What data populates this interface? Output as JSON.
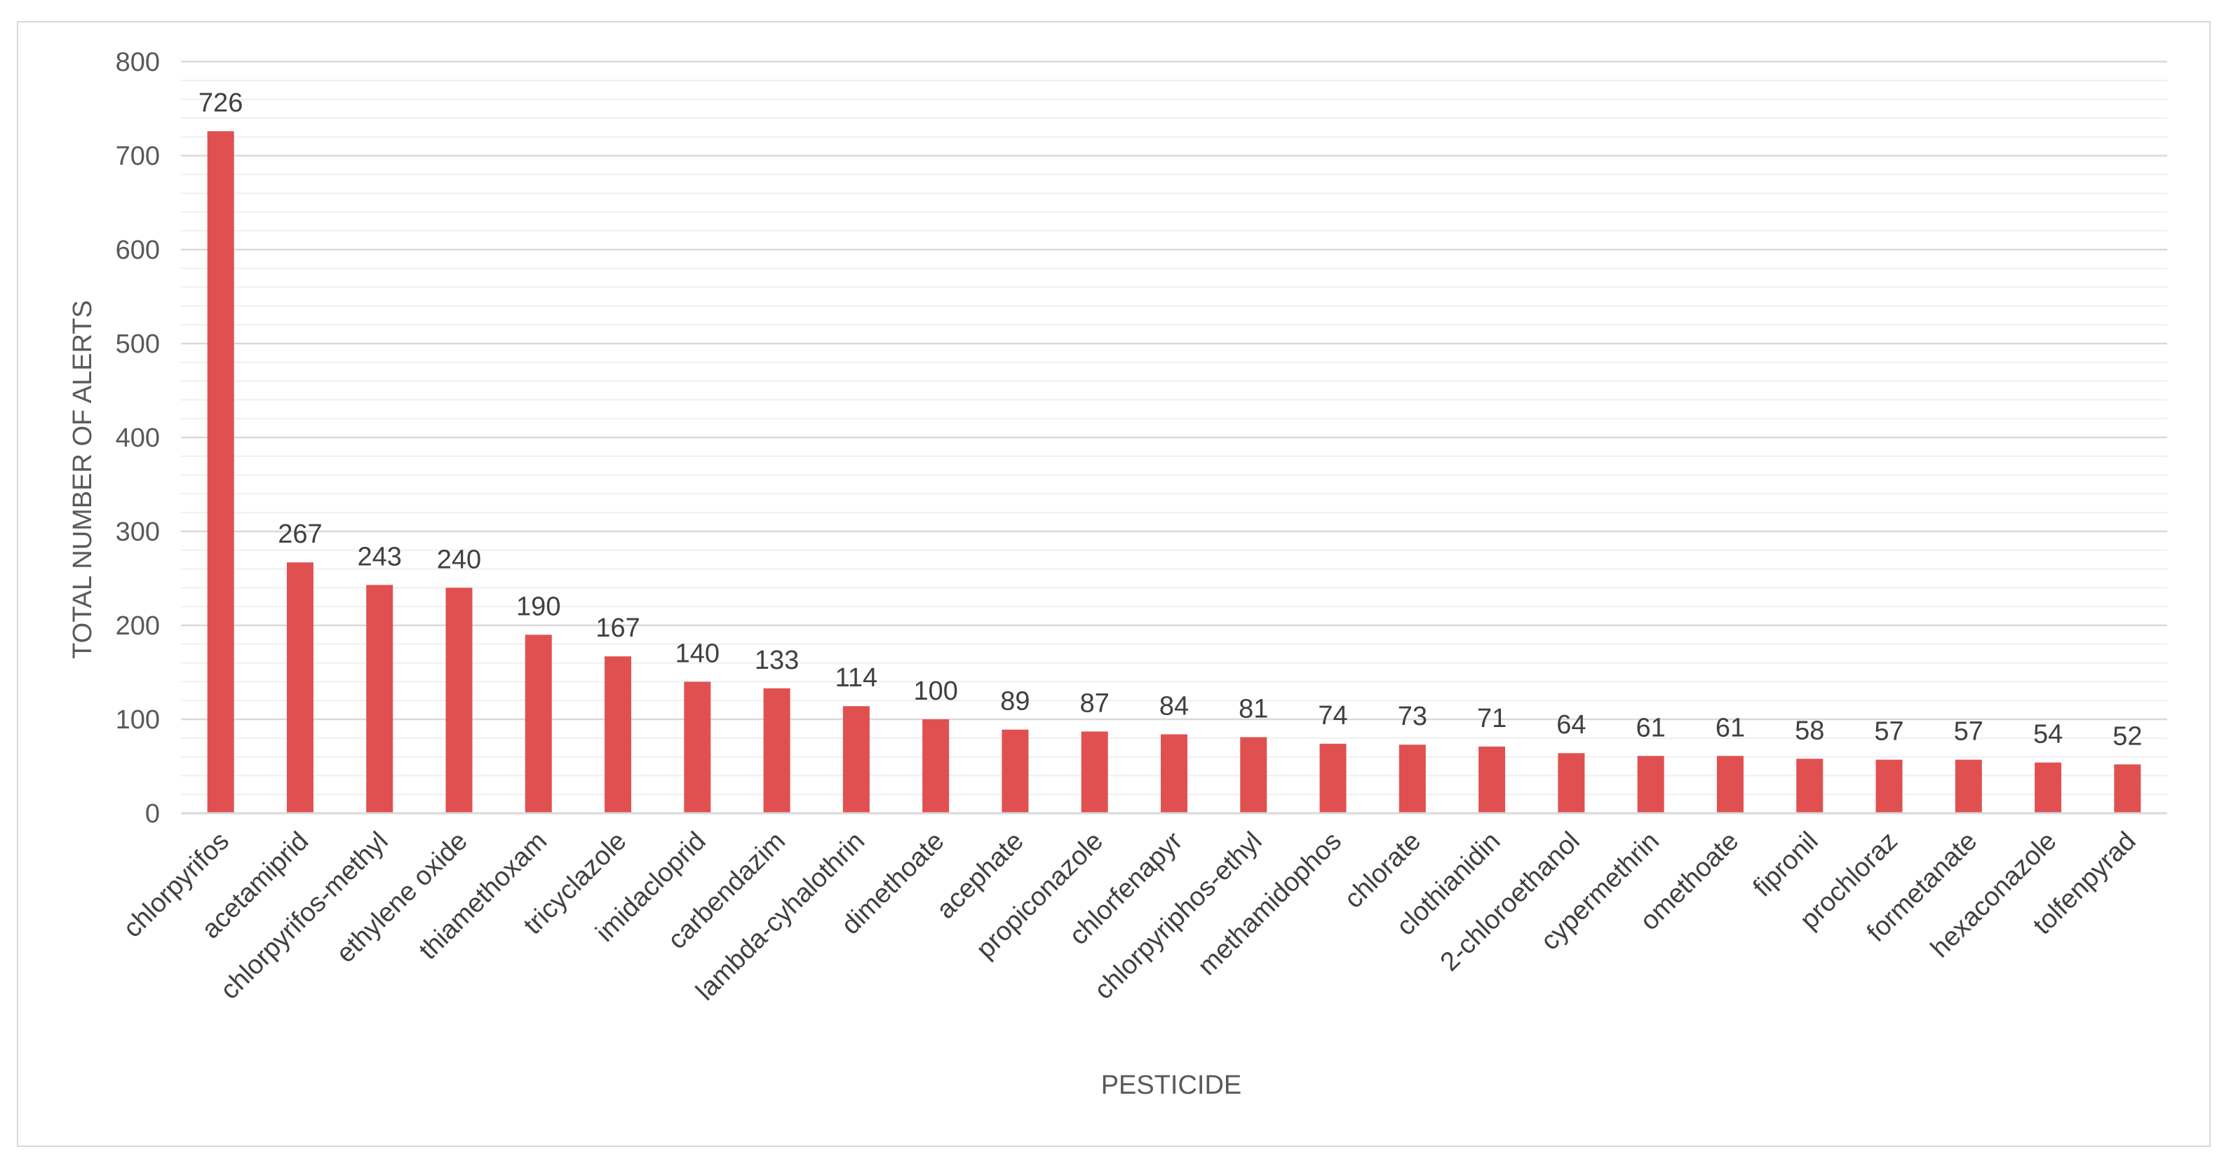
{
  "chart_data": {
    "type": "bar",
    "title": "",
    "xlabel": "PESTICIDE",
    "ylabel": "TOTAL NUMBER OF ALERTS",
    "ylim": [
      0,
      800
    ],
    "yticks": [
      0,
      100,
      200,
      300,
      400,
      500,
      600,
      700,
      800
    ],
    "minor_grid_step": 20,
    "grid": true,
    "legend": "none",
    "bar_color": "#e05050",
    "categories": [
      "chlorpyrifos",
      "acetamiprid",
      "chlorpyrifos-methyl",
      "ethylene oxide",
      "thiamethoxam",
      "tricyclazole",
      "imidacloprid",
      "carbendazim",
      "lambda-cyhalothrin",
      "dimethoate",
      "acephate",
      "propiconazole",
      "chlorfenapyr",
      "chlorpyriphos-ethyl",
      "methamidophos",
      "chlorate",
      "clothianidin",
      "2-chloroethanol",
      "cypermethrin",
      "omethoate",
      "fipronil",
      "prochloraz",
      "formetanate",
      "hexaconazole",
      "tolfenpyrad"
    ],
    "values": [
      726,
      267,
      243,
      240,
      190,
      167,
      140,
      133,
      114,
      100,
      89,
      87,
      84,
      81,
      74,
      73,
      71,
      64,
      61,
      61,
      58,
      57,
      57,
      54,
      52
    ]
  }
}
